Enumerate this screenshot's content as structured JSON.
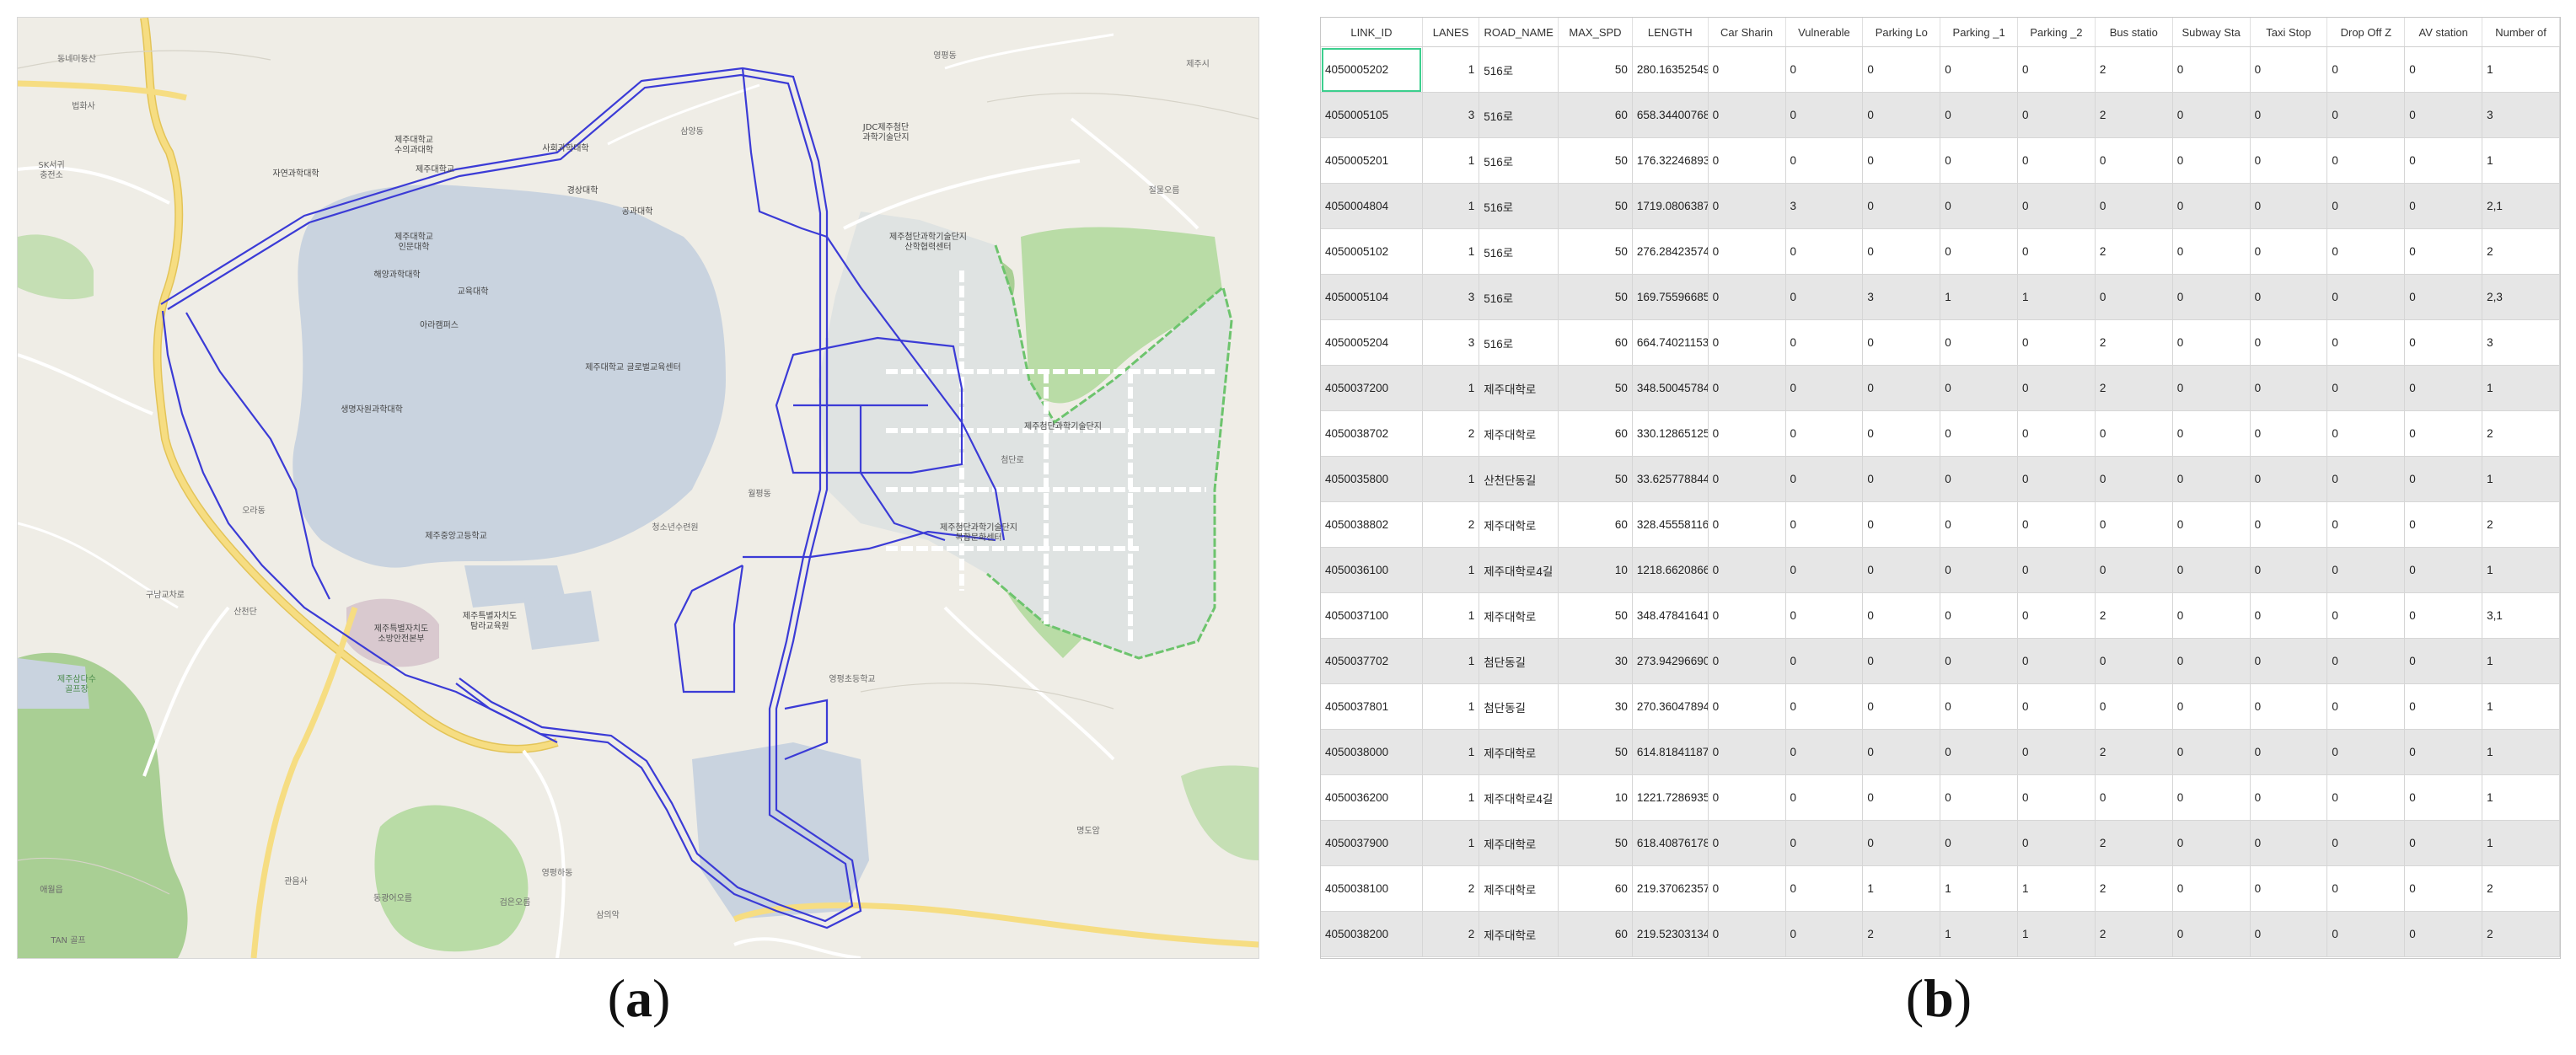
{
  "map": {
    "colors": {
      "background": "#efede6",
      "campus": "#c9d3df",
      "forest": "#a9cf94",
      "green_patch": "#b9dca6",
      "development": "#dfe3e2",
      "highway": "#f0d46a",
      "minor_road": "#ffffff",
      "network": "#3b3bd6",
      "boundary": "#6dc46d"
    },
    "labels": [
      {
        "text": "동네미동산",
        "tone": "gray"
      },
      {
        "text": "법화사",
        "tone": "gray"
      },
      {
        "text": "SK서귀\n충전소",
        "tone": "gray"
      },
      {
        "text": "제주대학교\n수의과대학",
        "tone": "dark"
      },
      {
        "text": "제주대학교",
        "tone": "dark"
      },
      {
        "text": "사회과학대학",
        "tone": "dark"
      },
      {
        "text": "제주대학교\n인문대학",
        "tone": "dark"
      },
      {
        "text": "공과대학",
        "tone": "dark"
      },
      {
        "text": "경상대학",
        "tone": "dark"
      },
      {
        "text": "자연과학대학",
        "tone": "dark"
      },
      {
        "text": "해양과학대학",
        "tone": "dark"
      },
      {
        "text": "교육대학",
        "tone": "dark"
      },
      {
        "text": "아라캠퍼스",
        "tone": "dark"
      },
      {
        "text": "생명자원과학대학",
        "tone": "dark"
      },
      {
        "text": "제주대학교 글로벌교육센터",
        "tone": "dark"
      },
      {
        "text": "제주첨단과학기술단지",
        "tone": "dark"
      },
      {
        "text": "JDC제주첨단\n과학기술단지",
        "tone": "dark"
      },
      {
        "text": "제주첨단과학기술단지\n산학협력센터",
        "tone": "dark"
      },
      {
        "text": "제주첨단과학기술단지\n복합문화센터",
        "tone": "dark"
      },
      {
        "text": "첨단로",
        "tone": "gray"
      },
      {
        "text": "영평초등학교",
        "tone": "gray"
      },
      {
        "text": "제주특별자치도\n소방안전본부",
        "tone": "dark"
      },
      {
        "text": "제주특별자치도\n탐라교육원",
        "tone": "dark"
      },
      {
        "text": "제주중앙고등학교",
        "tone": "dark"
      },
      {
        "text": "구남교차로",
        "tone": "gray"
      },
      {
        "text": "삼양동",
        "tone": "gray"
      },
      {
        "text": "오라동",
        "tone": "gray"
      },
      {
        "text": "영평동",
        "tone": "gray"
      },
      {
        "text": "월평동",
        "tone": "gray"
      },
      {
        "text": "청소년수련원",
        "tone": "gray"
      },
      {
        "text": "제주삼다수\n골프장",
        "tone": "green"
      },
      {
        "text": "동광어오름",
        "tone": "gray"
      },
      {
        "text": "산천단",
        "tone": "gray"
      },
      {
        "text": "검은오름",
        "tone": "gray"
      },
      {
        "text": "절물오름",
        "tone": "gray"
      },
      {
        "text": "애월읍",
        "tone": "gray"
      },
      {
        "text": "명도암",
        "tone": "gray"
      },
      {
        "text": "영평하동",
        "tone": "gray"
      },
      {
        "text": "삼의악",
        "tone": "gray"
      },
      {
        "text": "관음사",
        "tone": "gray"
      },
      {
        "text": "TAN 골프",
        "tone": "gray"
      },
      {
        "text": "제주시",
        "tone": "gray"
      }
    ]
  },
  "table": {
    "columns": [
      "LINK_ID",
      "LANES",
      "ROAD_NAME",
      "MAX_SPD",
      "LENGTH",
      "Car Sharin",
      "Vulnerable",
      "Parking Lo",
      "Parking _1",
      "Parking _2",
      "Bus statio",
      "Subway Sta",
      "Taxi Stop",
      "Drop Off Z",
      "AV station",
      "Number of"
    ],
    "rows": [
      [
        "4050005202",
        "1",
        "516로",
        "50",
        "280.16352549...",
        "0",
        "0",
        "0",
        "0",
        "0",
        "2",
        "0",
        "0",
        "0",
        "0",
        "1"
      ],
      [
        "4050005105",
        "3",
        "516로",
        "60",
        "658.34400768...",
        "0",
        "0",
        "0",
        "0",
        "0",
        "2",
        "0",
        "0",
        "0",
        "0",
        "3"
      ],
      [
        "4050005201",
        "1",
        "516로",
        "50",
        "176.32246893...",
        "0",
        "0",
        "0",
        "0",
        "0",
        "0",
        "0",
        "0",
        "0",
        "0",
        "1"
      ],
      [
        "4050004804",
        "1",
        "516로",
        "50",
        "1719.0806387...",
        "0",
        "3",
        "0",
        "0",
        "0",
        "0",
        "0",
        "0",
        "0",
        "0",
        "2,1"
      ],
      [
        "4050005102",
        "1",
        "516로",
        "50",
        "276.28423574...",
        "0",
        "0",
        "0",
        "0",
        "0",
        "2",
        "0",
        "0",
        "0",
        "0",
        "2"
      ],
      [
        "4050005104",
        "3",
        "516로",
        "50",
        "169.75596685...",
        "0",
        "0",
        "3",
        "1",
        "1",
        "0",
        "0",
        "0",
        "0",
        "0",
        "2,3"
      ],
      [
        "4050005204",
        "3",
        "516로",
        "60",
        "664.74021153...",
        "0",
        "0",
        "0",
        "0",
        "0",
        "2",
        "0",
        "0",
        "0",
        "0",
        "3"
      ],
      [
        "4050037200",
        "1",
        "제주대학로",
        "50",
        "348.50045784...",
        "0",
        "0",
        "0",
        "0",
        "0",
        "2",
        "0",
        "0",
        "0",
        "0",
        "1"
      ],
      [
        "4050038702",
        "2",
        "제주대학로",
        "60",
        "330.12865125...",
        "0",
        "0",
        "0",
        "0",
        "0",
        "0",
        "0",
        "0",
        "0",
        "0",
        "2"
      ],
      [
        "4050035800",
        "1",
        "산천단동길",
        "50",
        "33.625778844...",
        "0",
        "0",
        "0",
        "0",
        "0",
        "0",
        "0",
        "0",
        "0",
        "0",
        "1"
      ],
      [
        "4050038802",
        "2",
        "제주대학로",
        "60",
        "328.45558116...",
        "0",
        "0",
        "0",
        "0",
        "0",
        "0",
        "0",
        "0",
        "0",
        "0",
        "2"
      ],
      [
        "4050036100",
        "1",
        "제주대학로4길",
        "10",
        "1218.6620866...",
        "0",
        "0",
        "0",
        "0",
        "0",
        "0",
        "0",
        "0",
        "0",
        "0",
        "1"
      ],
      [
        "4050037100",
        "1",
        "제주대학로",
        "50",
        "348.47841641...",
        "0",
        "0",
        "0",
        "0",
        "0",
        "2",
        "0",
        "0",
        "0",
        "0",
        "3,1"
      ],
      [
        "4050037702",
        "1",
        "첨단동길",
        "30",
        "273.94296690...",
        "0",
        "0",
        "0",
        "0",
        "0",
        "0",
        "0",
        "0",
        "0",
        "0",
        "1"
      ],
      [
        "4050037801",
        "1",
        "첨단동길",
        "30",
        "270.36047894...",
        "0",
        "0",
        "0",
        "0",
        "0",
        "0",
        "0",
        "0",
        "0",
        "0",
        "1"
      ],
      [
        "4050038000",
        "1",
        "제주대학로",
        "50",
        "614.81841187...",
        "0",
        "0",
        "0",
        "0",
        "0",
        "2",
        "0",
        "0",
        "0",
        "0",
        "1"
      ],
      [
        "4050036200",
        "1",
        "제주대학로4길",
        "10",
        "1221.7286935...",
        "0",
        "0",
        "0",
        "0",
        "0",
        "0",
        "0",
        "0",
        "0",
        "0",
        "1"
      ],
      [
        "4050037900",
        "1",
        "제주대학로",
        "50",
        "618.40876178...",
        "0",
        "0",
        "0",
        "0",
        "0",
        "2",
        "0",
        "0",
        "0",
        "0",
        "1"
      ],
      [
        "4050038100",
        "2",
        "제주대학로",
        "60",
        "219.37062357...",
        "0",
        "0",
        "1",
        "1",
        "1",
        "2",
        "0",
        "0",
        "0",
        "0",
        "2"
      ],
      [
        "4050038200",
        "2",
        "제주대학로",
        "60",
        "219.52303134...",
        "0",
        "0",
        "2",
        "1",
        "1",
        "2",
        "0",
        "0",
        "0",
        "0",
        "2"
      ]
    ],
    "numeric_columns": [
      1,
      3
    ],
    "selected_cell": {
      "row": 0,
      "col": 0
    }
  },
  "captions": {
    "a_label": "a",
    "b_label": "b"
  }
}
